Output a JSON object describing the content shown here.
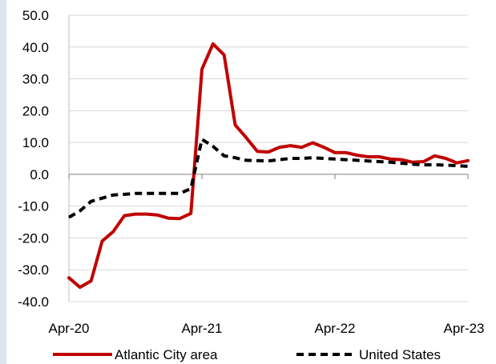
{
  "chart_data": {
    "type": "line",
    "title": "",
    "xlabel": "",
    "ylabel": "",
    "ylim": [
      -40,
      50
    ],
    "yticks": [
      "50.0",
      "40.0",
      "30.0",
      "20.0",
      "10.0",
      "0.0",
      "-10.0",
      "-20.0",
      "-30.0",
      "-40.0"
    ],
    "ytick_values": [
      50,
      40,
      30,
      20,
      10,
      0,
      -10,
      -20,
      -30,
      -40
    ],
    "xticks": [
      "Apr-20",
      "Apr-21",
      "Apr-22",
      "Apr-23"
    ],
    "xtick_index": [
      0,
      12,
      24,
      36
    ],
    "x": [
      "Apr-20",
      "May-20",
      "Jun-20",
      "Jul-20",
      "Aug-20",
      "Sep-20",
      "Oct-20",
      "Nov-20",
      "Dec-20",
      "Jan-21",
      "Feb-21",
      "Mar-21",
      "Apr-21",
      "May-21",
      "Jun-21",
      "Jul-21",
      "Aug-21",
      "Sep-21",
      "Oct-21",
      "Nov-21",
      "Dec-21",
      "Jan-22",
      "Feb-22",
      "Mar-22",
      "Apr-22",
      "May-22",
      "Jun-22",
      "Jul-22",
      "Aug-22",
      "Sep-22",
      "Oct-22",
      "Nov-22",
      "Dec-22",
      "Jan-23",
      "Feb-23",
      "Mar-23",
      "Apr-23"
    ],
    "grid": true,
    "legend_position": "bottom",
    "series": [
      {
        "name": "Atlantic City area",
        "color": "#c00000",
        "dash": "solid",
        "values": [
          -32.5,
          -35.5,
          -33.5,
          -21.0,
          -18.0,
          -13.0,
          -12.5,
          -12.5,
          -12.8,
          -13.8,
          -13.9,
          -12.3,
          33.0,
          41.0,
          37.5,
          15.5,
          11.5,
          7.2,
          7.0,
          8.5,
          9.0,
          8.5,
          9.9,
          8.5,
          6.8,
          6.8,
          6.0,
          5.5,
          5.5,
          4.8,
          4.6,
          3.8,
          4.0,
          5.8,
          5.0,
          3.6,
          4.3
        ]
      },
      {
        "name": "United States",
        "color": "#000000",
        "dash": "dashed",
        "values": [
          -13.5,
          -11.5,
          -8.5,
          -7.5,
          -6.5,
          -6.3,
          -6.0,
          -6.0,
          -6.0,
          -6.0,
          -6.0,
          -4.5,
          11.0,
          8.8,
          5.8,
          5.2,
          4.4,
          4.3,
          4.2,
          4.6,
          5.0,
          5.0,
          5.2,
          5.0,
          4.8,
          4.6,
          4.4,
          4.2,
          4.0,
          3.8,
          3.5,
          3.2,
          3.0,
          3.0,
          2.9,
          2.7,
          2.5
        ]
      }
    ]
  }
}
